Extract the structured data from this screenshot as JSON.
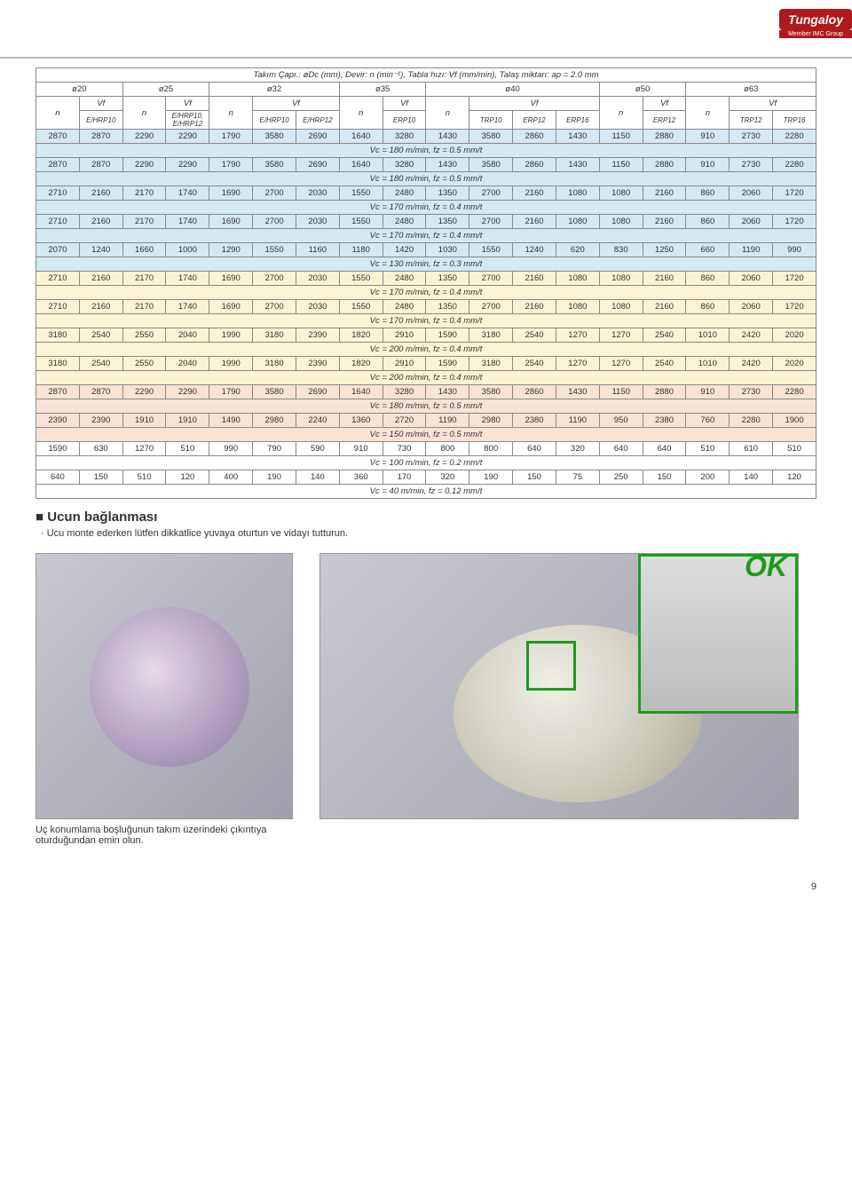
{
  "logo": "Tungaloy",
  "logo_sub": "Member IMC Group",
  "table_title": "Takım Çapı.: øDc (mm), Devir: n (min⁻¹), Tabla hızı: Vf (mm/min), Talaş miktarı: ap = 2.0 mm",
  "diameters": [
    "ø20",
    "ø25",
    "ø32",
    "ø35",
    "ø40",
    "ø50",
    "ø63"
  ],
  "nvf": {
    "n": "n",
    "vf": "Vf"
  },
  "subheads": {
    "c1": "E/HRP10",
    "c2": "E/HRP10, E/HRP12",
    "c3a": "E/HRP10",
    "c3b": "E/HRP12",
    "c4": "ERP10",
    "c5a": "TRP10",
    "c5b": "ERP12",
    "c5c": "ERP16",
    "c6": "ERP12",
    "c7a": "TRP12",
    "c7b": "TRP16"
  },
  "rows": [
    {
      "bg": "bg-blue",
      "data": [
        "2870",
        "2870",
        "2290",
        "2290",
        "1790",
        "3580",
        "2690",
        "1640",
        "3280",
        "1430",
        "3580",
        "2860",
        "1430",
        "1150",
        "2880",
        "910",
        "2730",
        "2280"
      ],
      "vc": "Vc = 180 m/min, fz = 0.5 mm/t"
    },
    {
      "bg": "bg-blue",
      "data": [
        "2870",
        "2870",
        "2290",
        "2290",
        "1790",
        "3580",
        "2690",
        "1640",
        "3280",
        "1430",
        "3580",
        "2860",
        "1430",
        "1150",
        "2880",
        "910",
        "2730",
        "2280"
      ],
      "vc": "Vc = 180 m/min, fz = 0.5 mm/t"
    },
    {
      "bg": "bg-blue",
      "data": [
        "2710",
        "2160",
        "2170",
        "1740",
        "1690",
        "2700",
        "2030",
        "1550",
        "2480",
        "1350",
        "2700",
        "2160",
        "1080",
        "1080",
        "2160",
        "860",
        "2060",
        "1720"
      ],
      "vc": "Vc = 170 m/min, fz = 0.4 mm/t"
    },
    {
      "bg": "bg-blue",
      "data": [
        "2710",
        "2160",
        "2170",
        "1740",
        "1690",
        "2700",
        "2030",
        "1550",
        "2480",
        "1350",
        "2700",
        "2160",
        "1080",
        "1080",
        "2160",
        "860",
        "2060",
        "1720"
      ],
      "vc": "Vc = 170 m/min, fz = 0.4 mm/t"
    },
    {
      "bg": "bg-blue",
      "data": [
        "2070",
        "1240",
        "1660",
        "1000",
        "1290",
        "1550",
        "1160",
        "1180",
        "1420",
        "1030",
        "1550",
        "1240",
        "620",
        "830",
        "1250",
        "660",
        "1190",
        "990"
      ],
      "vc": "Vc = 130 m/min, fz = 0.3 mm/t"
    },
    {
      "bg": "bg-yellow",
      "data": [
        "2710",
        "2160",
        "2170",
        "1740",
        "1690",
        "2700",
        "2030",
        "1550",
        "2480",
        "1350",
        "2700",
        "2160",
        "1080",
        "1080",
        "2160",
        "860",
        "2060",
        "1720"
      ],
      "vc": "Vc = 170 m/min, fz = 0.4 mm/t"
    },
    {
      "bg": "bg-yellow",
      "data": [
        "2710",
        "2160",
        "2170",
        "1740",
        "1690",
        "2700",
        "2030",
        "1550",
        "2480",
        "1350",
        "2700",
        "2160",
        "1080",
        "1080",
        "2160",
        "860",
        "2060",
        "1720"
      ],
      "vc": "Vc = 170 m/min, fz = 0.4 mm/t"
    },
    {
      "bg": "bg-yellow",
      "data": [
        "3180",
        "2540",
        "2550",
        "2040",
        "1990",
        "3180",
        "2390",
        "1820",
        "2910",
        "1590",
        "3180",
        "2540",
        "1270",
        "1270",
        "2540",
        "1010",
        "2420",
        "2020"
      ],
      "vc": "Vc = 200 m/min, fz = 0.4 mm/t"
    },
    {
      "bg": "bg-yellow",
      "data": [
        "3180",
        "2540",
        "2550",
        "2040",
        "1990",
        "3180",
        "2390",
        "1820",
        "2910",
        "1590",
        "3180",
        "2540",
        "1270",
        "1270",
        "2540",
        "1010",
        "2420",
        "2020"
      ],
      "vc": "Vc = 200 m/min, fz = 0.4 mm/t"
    },
    {
      "bg": "bg-orange",
      "data": [
        "2870",
        "2870",
        "2290",
        "2290",
        "1790",
        "3580",
        "2690",
        "1640",
        "3280",
        "1430",
        "3580",
        "2860",
        "1430",
        "1150",
        "2880",
        "910",
        "2730",
        "2280"
      ],
      "vc": "Vc = 180 m/min, fz = 0.5 mm/t"
    },
    {
      "bg": "bg-orange",
      "data": [
        "2390",
        "2390",
        "1910",
        "1910",
        "1490",
        "2980",
        "2240",
        "1360",
        "2720",
        "1190",
        "2980",
        "2380",
        "1190",
        "950",
        "2380",
        "760",
        "2280",
        "1900"
      ],
      "vc": "Vc = 150 m/min, fz = 0.5 mm/t"
    },
    {
      "bg": "bg-white",
      "data": [
        "1590",
        "630",
        "1270",
        "510",
        "990",
        "790",
        "590",
        "910",
        "730",
        "800",
        "800",
        "640",
        "320",
        "640",
        "640",
        "510",
        "610",
        "510"
      ],
      "vc": "Vc = 100 m/min, fz = 0.2 mm/t"
    },
    {
      "bg": "bg-white",
      "data": [
        "640",
        "150",
        "510",
        "120",
        "400",
        "190",
        "140",
        "360",
        "170",
        "320",
        "190",
        "150",
        "75",
        "250",
        "150",
        "200",
        "140",
        "120"
      ],
      "vc": "Vc = 40 m/min, fz = 0.12 mm/t"
    }
  ],
  "section_title": "Ucun bağlanması",
  "sub_note": "· Ucu monte ederken lütfen dikkatlice yuvaya oturtun ve vidayı tutturun.",
  "caption": "Uç konumlama boşluğunun takım üzerindeki çıkıntıya oturduğundan emin olun.",
  "ok": "OK",
  "page": "9"
}
